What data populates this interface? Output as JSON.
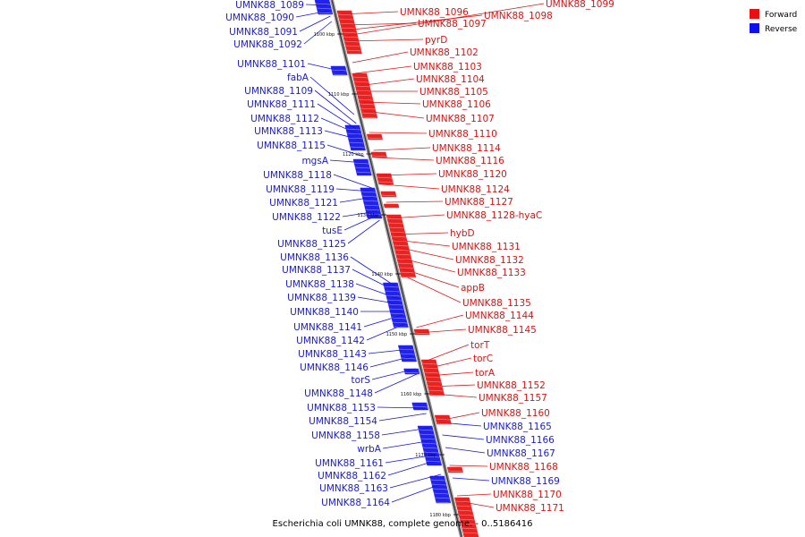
{
  "caption": "Escherichia coli UMNK88, complete genome. - 0..5186416",
  "legend": {
    "forward": {
      "label": "Forward",
      "color": "#e81010"
    },
    "reverse": {
      "label": "Reverse",
      "color": "#1010ee"
    }
  },
  "kbp_ticks": [
    "1100 kbp",
    "1110 kbp",
    "1120 kbp",
    "1130 kbp",
    "1140 kbp",
    "1150 kbp",
    "1160 kbp",
    "1170 kbp",
    "1180 kbp"
  ],
  "reverse_labels": [
    "UMNK88_1089",
    "UMNK88_1090",
    "UMNK88_1091",
    "UMNK88_1092",
    "UMNK88_1101",
    "fabA",
    "UMNK88_1109",
    "UMNK88_1111",
    "UMNK88_1112",
    "UMNK88_1113",
    "UMNK88_1115",
    "mgsA",
    "UMNK88_1118",
    "UMNK88_1119",
    "UMNK88_1121",
    "UMNK88_1122",
    "tusE",
    "UMNK88_1125",
    "UMNK88_1136",
    "UMNK88_1137",
    "UMNK88_1138",
    "UMNK88_1139",
    "UMNK88_1140",
    "UMNK88_1141",
    "UMNK88_1142",
    "UMNK88_1143",
    "UMNK88_1146",
    "torS",
    "UMNK88_1148",
    "UMNK88_1153",
    "UMNK88_1154",
    "UMNK88_1158",
    "wrbA",
    "UMNK88_1161",
    "UMNK88_1162",
    "UMNK88_1163",
    "UMNK88_1164"
  ],
  "forward_labels": [
    "UMNK88_1096",
    "UMNK88_1097",
    "UMNK88_1098",
    "UMNK88_1099",
    "pyrD",
    "UMNK88_1102",
    "UMNK88_1103",
    "UMNK88_1104",
    "UMNK88_1105",
    "UMNK88_1106",
    "UMNK88_1107",
    "UMNK88_1110",
    "UMNK88_1114",
    "UMNK88_1116",
    "UMNK88_1120",
    "UMNK88_1124",
    "UMNK88_1127",
    "UMNK88_1128-hyaC",
    "hybD",
    "UMNK88_1131",
    "UMNK88_1132",
    "UMNK88_1133",
    "appB",
    "UMNK88_1135",
    "UMNK88_1144",
    "UMNK88_1145",
    "torT",
    "torC",
    "torA",
    "UMNK88_1152",
    "UMNK88_1157",
    "UMNK88_1160",
    "UMNK88_1168",
    "UMNK88_1170",
    "UMNK88_1171"
  ],
  "right_blue_labels": [
    "UMNK88_1165",
    "UMNK88_1166",
    "UMNK88_1167",
    "UMNK88_1169"
  ]
}
